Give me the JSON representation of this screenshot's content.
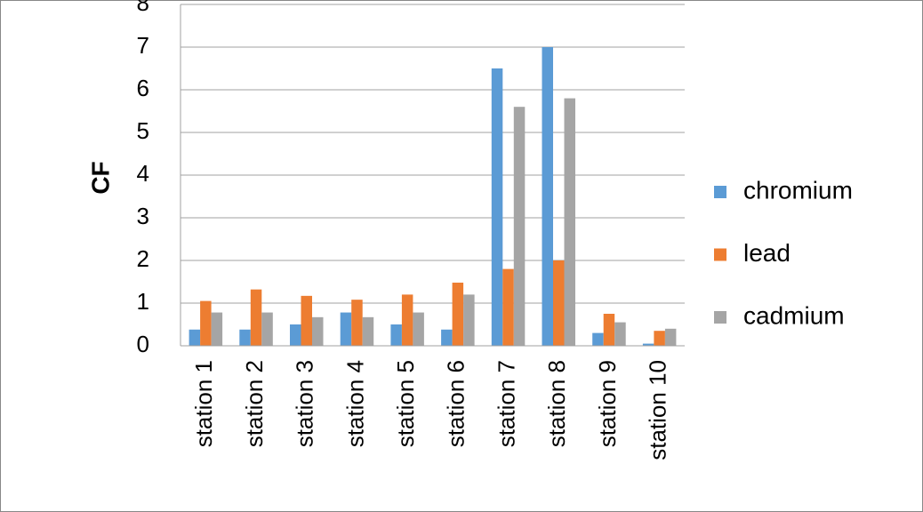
{
  "chart_data": {
    "type": "bar",
    "y_label": "CF",
    "categories": [
      "station 1",
      "station 2",
      "station 3",
      "station 4",
      "station 5",
      "station 6",
      "station 7",
      "station 8",
      "station 9",
      "station 10"
    ],
    "series": [
      {
        "name": "chromium",
        "color": "#5b9bd5",
        "values": [
          0.38,
          0.38,
          0.5,
          0.78,
          0.5,
          0.38,
          6.5,
          7.0,
          0.3,
          0.05
        ]
      },
      {
        "name": "lead",
        "color": "#ed7d31",
        "values": [
          1.05,
          1.32,
          1.17,
          1.08,
          1.2,
          1.48,
          1.8,
          2.0,
          0.75,
          0.35
        ]
      },
      {
        "name": "cadmium",
        "color": "#a5a5a5",
        "values": [
          0.78,
          0.78,
          0.67,
          0.67,
          0.78,
          1.2,
          5.6,
          5.8,
          0.55,
          0.4
        ]
      }
    ],
    "ylim": [
      0,
      8
    ],
    "yticks": [
      0,
      1,
      2,
      3,
      4,
      5,
      6,
      7,
      8
    ],
    "grid": true,
    "legend": "right"
  }
}
